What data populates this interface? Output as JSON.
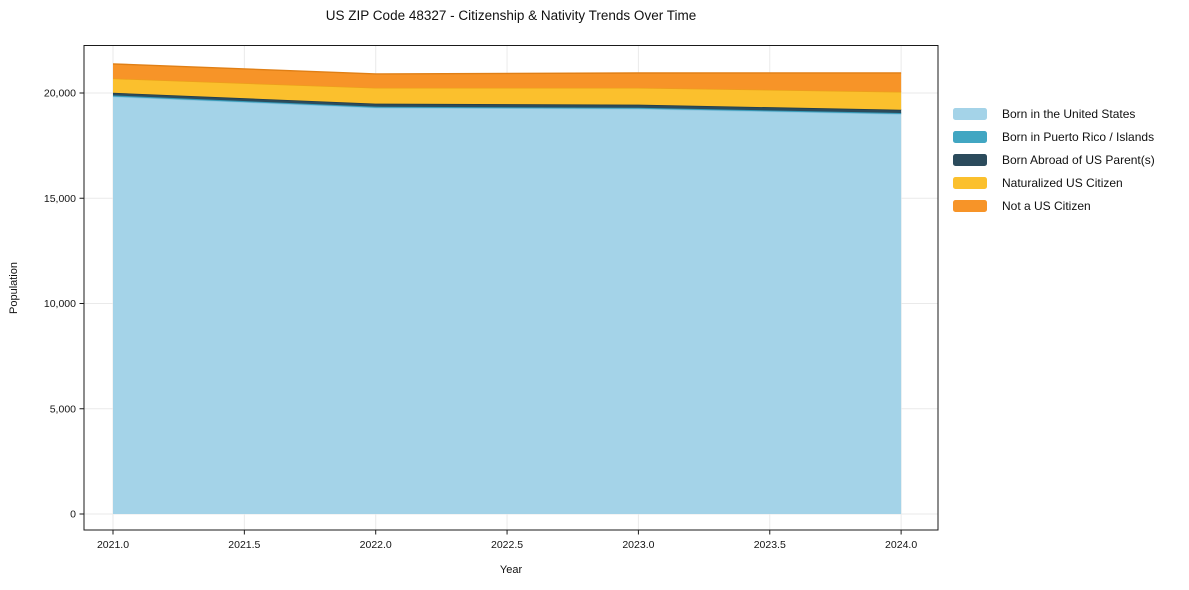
{
  "chart_data": {
    "type": "area",
    "stacked": true,
    "title": "US ZIP Code 48327 - Citizenship & Nativity Trends Over Time",
    "xlabel": "Year",
    "ylabel": "Population",
    "x": [
      2021,
      2022,
      2023,
      2024
    ],
    "series": [
      {
        "name": "Born in the United States",
        "color": "#A4D3E8",
        "edge": "#8CC3DE",
        "values": [
          19830,
          19300,
          19250,
          19000
        ]
      },
      {
        "name": "Born in Puerto Rico / Islands",
        "color": "#41A6C2",
        "edge": "#3394B1",
        "values": [
          55,
          50,
          50,
          50
        ]
      },
      {
        "name": "Born Abroad of US Parent(s)",
        "color": "#2B4B5C",
        "edge": "#213C4A",
        "values": [
          125,
          145,
          145,
          155
        ]
      },
      {
        "name": "Naturalized US Citizen",
        "color": "#FBC02D",
        "edge": "#ECA01A",
        "values": [
          680,
          750,
          800,
          850
        ]
      },
      {
        "name": "Not a US Citizen",
        "color": "#F79428",
        "edge": "#E07F15",
        "values": [
          690,
          660,
          705,
          900
        ]
      }
    ],
    "xticks": {
      "values": [
        2021.0,
        2021.5,
        2022.0,
        2022.5,
        2023.0,
        2023.5,
        2024.0
      ],
      "labels": [
        "2021.0",
        "2021.5",
        "2022.0",
        "2022.5",
        "2023.0",
        "2023.5",
        "2024.0"
      ]
    },
    "yticks": {
      "values": [
        0,
        5000,
        10000,
        15000,
        20000
      ],
      "labels": [
        "0",
        "5,000",
        "10,000",
        "15,000",
        "20,000"
      ]
    },
    "xlim": [
      2020.8896,
      2024.1404
    ],
    "ylim": [
      -760,
      22256
    ],
    "grid": true,
    "grid_color": "#EAEAEA",
    "spine_color": "#1a1a1a",
    "tick_label_color": "#141414",
    "legend_position": "right",
    "plot_background": "#ffffff"
  }
}
